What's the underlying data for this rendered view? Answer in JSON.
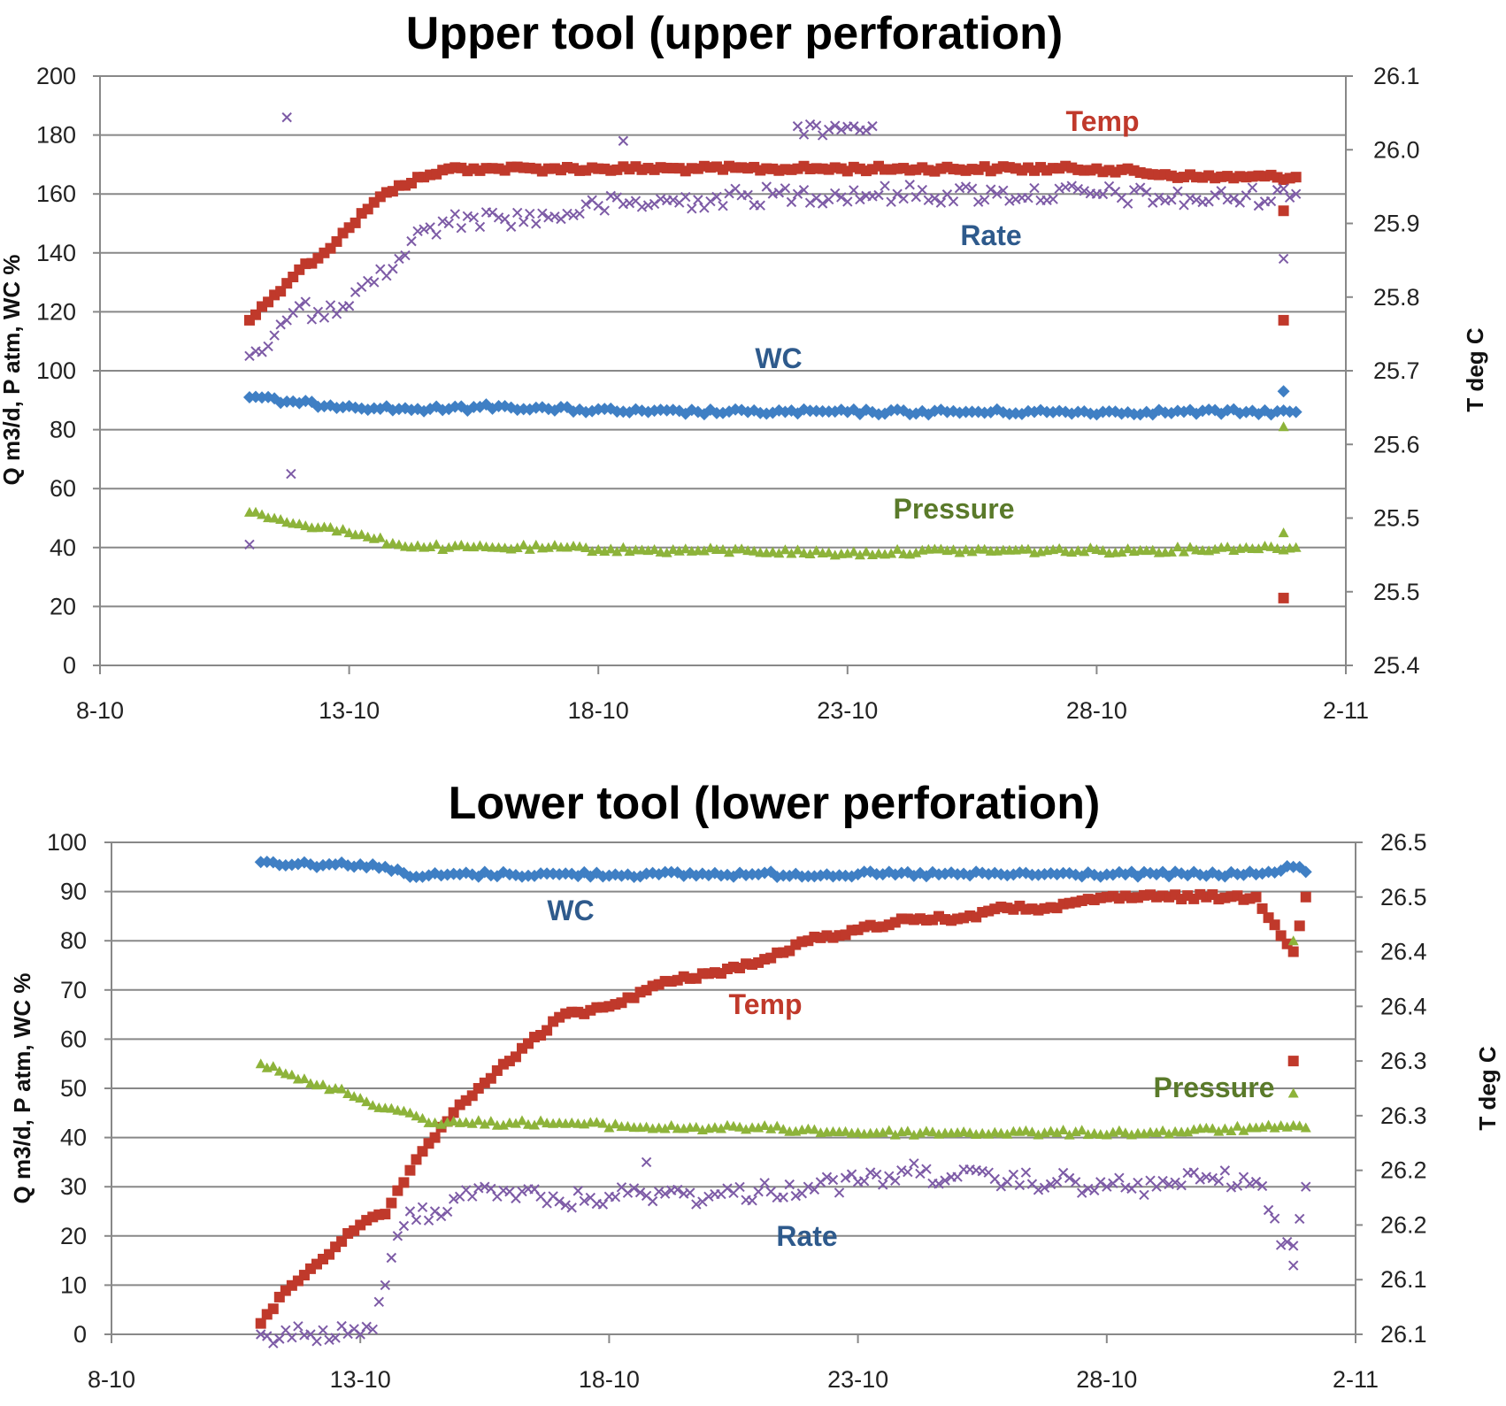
{
  "chart_data": [
    {
      "type": "scatter",
      "title": "Upper tool (upper perforation)",
      "xlabel": "",
      "ylabel": "Q m3/d, P atm, WC %",
      "y2label": "T deg C",
      "x_ticks": [
        "8-10",
        "13-10",
        "18-10",
        "23-10",
        "28-10",
        "2-11"
      ],
      "y_ticks": [
        "0",
        "20",
        "40",
        "60",
        "80",
        "100",
        "120",
        "140",
        "160",
        "180",
        "200"
      ],
      "y2_ticks": [
        "25.4",
        "25.5",
        "25.5",
        "25.6",
        "25.7",
        "25.8",
        "25.9",
        "26.0",
        "26.1"
      ],
      "xlim": [
        "2012-10-08",
        "2012-11-02"
      ],
      "ylim": [
        0,
        200
      ],
      "y2lim": [
        25.4,
        26.1
      ],
      "grid": true,
      "series": [
        {
          "name": "Temp",
          "axis": "right",
          "marker": "square",
          "color": "#c0392b",
          "points": [
            [
              "2012-10-11",
              25.81
            ],
            [
              "2012-10-11T12",
              25.84
            ],
            [
              "2012-10-12",
              25.87
            ],
            [
              "2012-10-12T12",
              25.89
            ],
            [
              "2012-10-13",
              25.92
            ],
            [
              "2012-10-13T12",
              25.95
            ],
            [
              "2012-10-14",
              25.97
            ],
            [
              "2012-10-14T12",
              25.98
            ],
            [
              "2012-10-15",
              25.99
            ],
            [
              "2012-10-15T12",
              25.99
            ],
            [
              "2012-10-16",
              25.99
            ],
            [
              "2012-10-17",
              25.99
            ],
            [
              "2012-10-18",
              25.99
            ],
            [
              "2012-10-20",
              25.99
            ],
            [
              "2012-10-22",
              25.99
            ],
            [
              "2012-10-24",
              25.99
            ],
            [
              "2012-10-26",
              25.99
            ],
            [
              "2012-10-28",
              25.99
            ],
            [
              "2012-10-30",
              25.98
            ],
            [
              "2012-10-31",
              25.98
            ],
            [
              "2012-11-01",
              25.98
            ],
            [
              "2012-10-31T18",
              25.48
            ],
            [
              "2012-10-31T18",
              25.81
            ],
            [
              "2012-10-31T18",
              25.94
            ]
          ]
        },
        {
          "name": "Rate",
          "axis": "left",
          "marker": "x",
          "color": "#7d5ba6",
          "points": [
            [
              "2012-10-11",
              105
            ],
            [
              "2012-10-11T12",
              112
            ],
            [
              "2012-10-12",
              122
            ],
            [
              "2012-10-12T12",
              118
            ],
            [
              "2012-10-13",
              122
            ],
            [
              "2012-10-13T12",
              130
            ],
            [
              "2012-10-14",
              138
            ],
            [
              "2012-10-14T12",
              148
            ],
            [
              "2012-10-15",
              150
            ],
            [
              "2012-10-15T12",
              152
            ],
            [
              "2012-10-16",
              152
            ],
            [
              "2012-10-17",
              152
            ],
            [
              "2012-10-18",
              156
            ],
            [
              "2012-10-20",
              158
            ],
            [
              "2012-10-22",
              160
            ],
            [
              "2012-10-24",
              160
            ],
            [
              "2012-10-26",
              160
            ],
            [
              "2012-10-28",
              160
            ],
            [
              "2012-10-30",
              158
            ],
            [
              "2012-11-01",
              160
            ],
            [
              "2012-10-11T18",
              186
            ],
            [
              "2012-10-22",
              183
            ],
            [
              "2012-10-23T12",
              183
            ],
            [
              "2012-10-18T12",
              178
            ],
            [
              "2012-10-11T20",
              65
            ],
            [
              "2012-10-11",
              41
            ],
            [
              "2012-10-31T18",
              138
            ]
          ]
        },
        {
          "name": "WC",
          "axis": "left",
          "marker": "diamond",
          "color": "#3f7fc4",
          "points": [
            [
              "2012-10-11",
              91
            ],
            [
              "2012-10-12",
              89
            ],
            [
              "2012-10-13",
              88
            ],
            [
              "2012-10-14",
              87
            ],
            [
              "2012-10-15",
              87
            ],
            [
              "2012-10-16",
              88
            ],
            [
              "2012-10-17",
              87
            ],
            [
              "2012-10-19",
              86
            ],
            [
              "2012-10-21",
              86
            ],
            [
              "2012-10-23",
              86
            ],
            [
              "2012-10-25",
              86
            ],
            [
              "2012-10-27",
              86
            ],
            [
              "2012-10-29",
              86
            ],
            [
              "2012-10-31",
              86
            ],
            [
              "2012-11-01",
              86
            ],
            [
              "2012-10-31T18",
              93
            ]
          ]
        },
        {
          "name": "Pressure",
          "axis": "left",
          "marker": "triangle",
          "color": "#8db33a",
          "points": [
            [
              "2012-10-11",
              52
            ],
            [
              "2012-10-11T12",
              50
            ],
            [
              "2012-10-12",
              48
            ],
            [
              "2012-10-12T12",
              47
            ],
            [
              "2012-10-13",
              45
            ],
            [
              "2012-10-13T12",
              43
            ],
            [
              "2012-10-14",
              41
            ],
            [
              "2012-10-15",
              40
            ],
            [
              "2012-10-16",
              40
            ],
            [
              "2012-10-17",
              40
            ],
            [
              "2012-10-19",
              39
            ],
            [
              "2012-10-21",
              39
            ],
            [
              "2012-10-23",
              38
            ],
            [
              "2012-10-25",
              39
            ],
            [
              "2012-10-27",
              39
            ],
            [
              "2012-10-29",
              39
            ],
            [
              "2012-10-31",
              40
            ],
            [
              "2012-11-01",
              40
            ],
            [
              "2012-10-31T18",
              45
            ],
            [
              "2012-10-31T18",
              81
            ]
          ]
        }
      ]
    },
    {
      "type": "scatter",
      "title": "Lower tool (lower perforation)",
      "xlabel": "",
      "ylabel": "Q m3/d, P atm, WC %",
      "y2label": "T deg C",
      "x_ticks": [
        "8-10",
        "13-10",
        "18-10",
        "23-10",
        "28-10",
        "2-11"
      ],
      "y_ticks": [
        "0",
        "10",
        "20",
        "30",
        "40",
        "50",
        "60",
        "70",
        "80",
        "90",
        "100"
      ],
      "y2_ticks": [
        "26.1",
        "26.1",
        "26.2",
        "26.2",
        "26.3",
        "26.3",
        "26.4",
        "26.4",
        "26.5",
        "26.5"
      ],
      "xlim": [
        "2012-10-08",
        "2012-11-02"
      ],
      "ylim": [
        0,
        100
      ],
      "y2lim": [
        26.1,
        26.55
      ],
      "grid": true,
      "series": [
        {
          "name": "WC",
          "axis": "left",
          "marker": "diamond",
          "color": "#3f7fc4",
          "points": [
            [
              "2012-10-11",
              96
            ],
            [
              "2012-10-12",
              95.5
            ],
            [
              "2012-10-13",
              95.5
            ],
            [
              "2012-10-13T12",
              95
            ],
            [
              "2012-10-14",
              93
            ],
            [
              "2012-10-15",
              93.5
            ],
            [
              "2012-10-16",
              93.5
            ],
            [
              "2012-10-17",
              93.5
            ],
            [
              "2012-10-19",
              93.5
            ],
            [
              "2012-10-21",
              93.5
            ],
            [
              "2012-10-23",
              93.5
            ],
            [
              "2012-10-25",
              93.5
            ],
            [
              "2012-10-27",
              93.5
            ],
            [
              "2012-10-29",
              93.5
            ],
            [
              "2012-10-31",
              93.5
            ],
            [
              "2012-10-31T18",
              95
            ],
            [
              "2012-11-01",
              94
            ]
          ]
        },
        {
          "name": "Temp",
          "axis": "right",
          "marker": "square",
          "color": "#c0392b",
          "points": [
            [
              "2012-10-11",
              26.11
            ],
            [
              "2012-10-11T12",
              26.14
            ],
            [
              "2012-10-12",
              26.16
            ],
            [
              "2012-10-12T12",
              26.18
            ],
            [
              "2012-10-13",
              26.2
            ],
            [
              "2012-10-13T12",
              26.21
            ],
            [
              "2012-10-14",
              26.25
            ],
            [
              "2012-10-14T12",
              26.28
            ],
            [
              "2012-10-15",
              26.31
            ],
            [
              "2012-10-15T12",
              26.33
            ],
            [
              "2012-10-16",
              26.35
            ],
            [
              "2012-10-17",
              26.39
            ],
            [
              "2012-10-18",
              26.4
            ],
            [
              "2012-10-19",
              26.42
            ],
            [
              "2012-10-20",
              26.43
            ],
            [
              "2012-10-21",
              26.44
            ],
            [
              "2012-10-22",
              26.46
            ],
            [
              "2012-10-23",
              26.47
            ],
            [
              "2012-10-24",
              26.48
            ],
            [
              "2012-10-25",
              26.48
            ],
            [
              "2012-10-26",
              26.49
            ],
            [
              "2012-10-27",
              26.49
            ],
            [
              "2012-10-28",
              26.5
            ],
            [
              "2012-10-29",
              26.5
            ],
            [
              "2012-10-30",
              26.5
            ],
            [
              "2012-10-31",
              26.5
            ],
            [
              "2012-10-31T18",
              26.45
            ],
            [
              "2012-11-01",
              26.5
            ],
            [
              "2012-10-31T18",
              26.35
            ]
          ]
        },
        {
          "name": "Pressure",
          "axis": "left",
          "marker": "triangle",
          "color": "#8db33a",
          "points": [
            [
              "2012-10-11",
              55
            ],
            [
              "2012-10-11T12",
              53
            ],
            [
              "2012-10-12",
              51
            ],
            [
              "2012-10-12T12",
              50
            ],
            [
              "2012-10-13",
              48
            ],
            [
              "2012-10-13T12",
              46
            ],
            [
              "2012-10-14",
              45
            ],
            [
              "2012-10-14T12",
              43
            ],
            [
              "2012-10-15",
              43
            ],
            [
              "2012-10-16",
              43
            ],
            [
              "2012-10-17",
              43
            ],
            [
              "2012-10-19",
              42
            ],
            [
              "2012-10-21",
              42
            ],
            [
              "2012-10-23",
              41
            ],
            [
              "2012-10-25",
              41
            ],
            [
              "2012-10-27",
              41
            ],
            [
              "2012-10-29",
              41
            ],
            [
              "2012-10-31",
              42
            ],
            [
              "2012-11-01",
              42
            ],
            [
              "2012-10-31T18",
              49
            ],
            [
              "2012-10-31T18",
              80
            ]
          ]
        },
        {
          "name": "Rate",
          "axis": "left",
          "marker": "x",
          "color": "#7d5ba6",
          "points": [
            [
              "2012-10-11",
              0
            ],
            [
              "2012-10-12",
              0
            ],
            [
              "2012-10-13",
              0
            ],
            [
              "2012-10-13T06",
              1
            ],
            [
              "2012-10-13T12",
              10
            ],
            [
              "2012-10-13T18",
              20
            ],
            [
              "2012-10-14",
              25
            ],
            [
              "2012-10-14T12",
              25
            ],
            [
              "2012-10-15",
              28
            ],
            [
              "2012-10-15T12",
              30
            ],
            [
              "2012-10-16",
              29
            ],
            [
              "2012-10-17",
              27
            ],
            [
              "2012-10-18",
              28
            ],
            [
              "2012-10-19",
              29
            ],
            [
              "2012-10-20",
              28
            ],
            [
              "2012-10-21",
              29
            ],
            [
              "2012-10-22",
              30
            ],
            [
              "2012-10-23",
              31
            ],
            [
              "2012-10-24",
              33
            ],
            [
              "2012-10-25",
              32
            ],
            [
              "2012-10-26",
              31
            ],
            [
              "2012-10-27",
              31
            ],
            [
              "2012-10-28",
              30
            ],
            [
              "2012-10-29",
              30
            ],
            [
              "2012-10-30",
              32
            ],
            [
              "2012-10-31",
              31
            ],
            [
              "2012-10-31T18",
              14
            ],
            [
              "2012-10-31T18",
              18
            ],
            [
              "2012-11-01",
              30
            ],
            [
              "2012-10-18T18",
              35
            ]
          ]
        }
      ]
    }
  ]
}
